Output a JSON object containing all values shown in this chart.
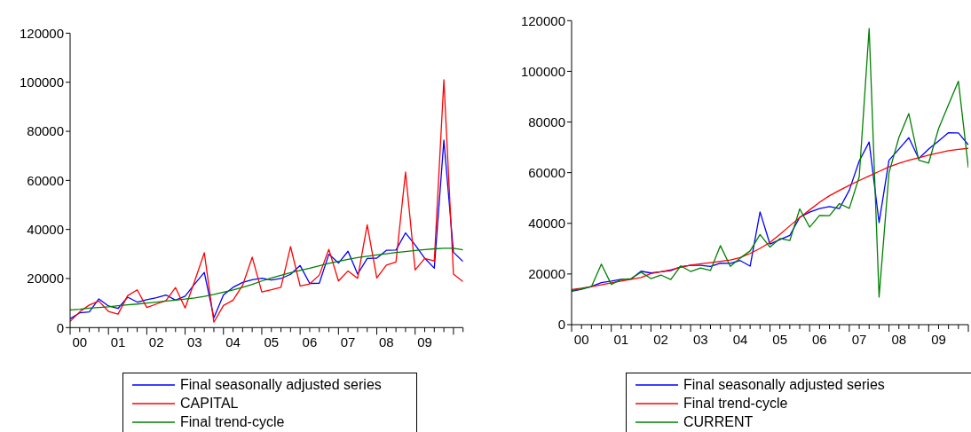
{
  "chart_data": [
    {
      "type": "line",
      "categories": [
        null,
        "00",
        null,
        null,
        null,
        "01",
        null,
        null,
        null,
        "02",
        null,
        null,
        null,
        "03",
        null,
        null,
        null,
        "04",
        null,
        null,
        null,
        "05",
        null,
        null,
        null,
        "06",
        null,
        null,
        null,
        "07",
        null,
        null,
        null,
        "08",
        null,
        null,
        null,
        "09",
        null,
        null,
        null,
        null
      ],
      "ylim": [
        0,
        120000
      ],
      "yticks": [
        0,
        20000,
        40000,
        60000,
        80000,
        100000,
        120000
      ],
      "grid": false,
      "legend": "bottom",
      "marker": "none",
      "line_style": "solid",
      "series": [
        {
          "name": "Final seasonally adjusted series",
          "color": "#0000ff",
          "values": [
            3600,
            6000,
            6400,
            11700,
            8800,
            7800,
            12400,
            10400,
            11400,
            12200,
            13300,
            11200,
            12800,
            17800,
            22500,
            4000,
            13300,
            16400,
            18400,
            19500,
            20100,
            19400,
            20000,
            21700,
            25300,
            18000,
            18100,
            29900,
            26300,
            31100,
            21800,
            28200,
            28300,
            31500,
            31600,
            38600,
            33700,
            28300,
            24200,
            76400,
            30700,
            26900
          ]
        },
        {
          "name": "CAPITAL",
          "color": "#ff0000",
          "values": [
            2500,
            6400,
            9200,
            10800,
            6600,
            5500,
            13000,
            15400,
            8200,
            9600,
            11000,
            16300,
            8000,
            19000,
            30500,
            2200,
            9000,
            11200,
            17200,
            28700,
            14500,
            15400,
            16400,
            33000,
            17000,
            17800,
            21400,
            31900,
            19000,
            23100,
            20100,
            41900,
            20200,
            25500,
            26700,
            63400,
            23500,
            28200,
            27200,
            101000,
            21800,
            18700
          ]
        },
        {
          "name": "Final trend-cycle",
          "color": "#008000",
          "values": [
            7200,
            7500,
            7900,
            8200,
            8500,
            8900,
            9300,
            9600,
            10000,
            10400,
            10800,
            11200,
            11600,
            12100,
            12700,
            13500,
            14400,
            15300,
            16400,
            17600,
            19000,
            20200,
            21300,
            22400,
            23300,
            24200,
            25200,
            26200,
            27000,
            27800,
            28500,
            29100,
            29600,
            30100,
            30600,
            31000,
            31400,
            31800,
            32100,
            32300,
            32300,
            31700
          ]
        }
      ]
    },
    {
      "type": "line",
      "categories": [
        null,
        "00",
        null,
        null,
        null,
        "01",
        null,
        null,
        null,
        "02",
        null,
        null,
        null,
        "03",
        null,
        null,
        null,
        "04",
        null,
        null,
        null,
        "05",
        null,
        null,
        null,
        "06",
        null,
        null,
        null,
        "07",
        null,
        null,
        null,
        "08",
        null,
        null,
        null,
        "09",
        null,
        null,
        null
      ],
      "ylim": [
        0,
        120000
      ],
      "yticks": [
        0,
        20000,
        40000,
        60000,
        80000,
        100000,
        120000
      ],
      "grid": false,
      "legend": "bottom",
      "marker": "none",
      "line_style": "solid",
      "series": [
        {
          "name": "Final seasonally adjusted series",
          "color": "#0000ff",
          "values": [
            13200,
            14000,
            15100,
            16600,
            17200,
            17900,
            18000,
            21100,
            20400,
            20900,
            21300,
            22900,
            23400,
            23400,
            23000,
            24300,
            24200,
            25300,
            23100,
            44500,
            31800,
            33600,
            35200,
            42400,
            44400,
            45800,
            46600,
            45800,
            53100,
            64600,
            72100,
            40300,
            64900,
            69300,
            73800,
            65600,
            69300,
            72500,
            75800,
            75700,
            71000
          ]
        },
        {
          "name": "Final trend-cycle",
          "color": "#ff0000",
          "values": [
            13900,
            14400,
            15000,
            15700,
            16500,
            17200,
            17900,
            18600,
            20200,
            20900,
            21700,
            22600,
            23500,
            24000,
            24500,
            25000,
            25500,
            26500,
            28100,
            30100,
            32500,
            35600,
            39000,
            42300,
            45300,
            48300,
            50900,
            53000,
            55000,
            56900,
            58700,
            60500,
            62300,
            63700,
            64900,
            65900,
            66900,
            67800,
            68700,
            69200,
            69600
          ]
        },
        {
          "name": "CURRENT",
          "color": "#008000",
          "values": [
            13500,
            14100,
            15000,
            23900,
            15900,
            17800,
            18200,
            20700,
            18200,
            19600,
            17800,
            23200,
            21000,
            22400,
            21400,
            31200,
            23000,
            26300,
            29100,
            35600,
            30600,
            34000,
            33200,
            45700,
            38500,
            43100,
            43000,
            47800,
            45900,
            58400,
            116900,
            10900,
            59900,
            73900,
            83300,
            64900,
            63800,
            77400,
            86800,
            96100,
            62000
          ]
        }
      ]
    }
  ]
}
